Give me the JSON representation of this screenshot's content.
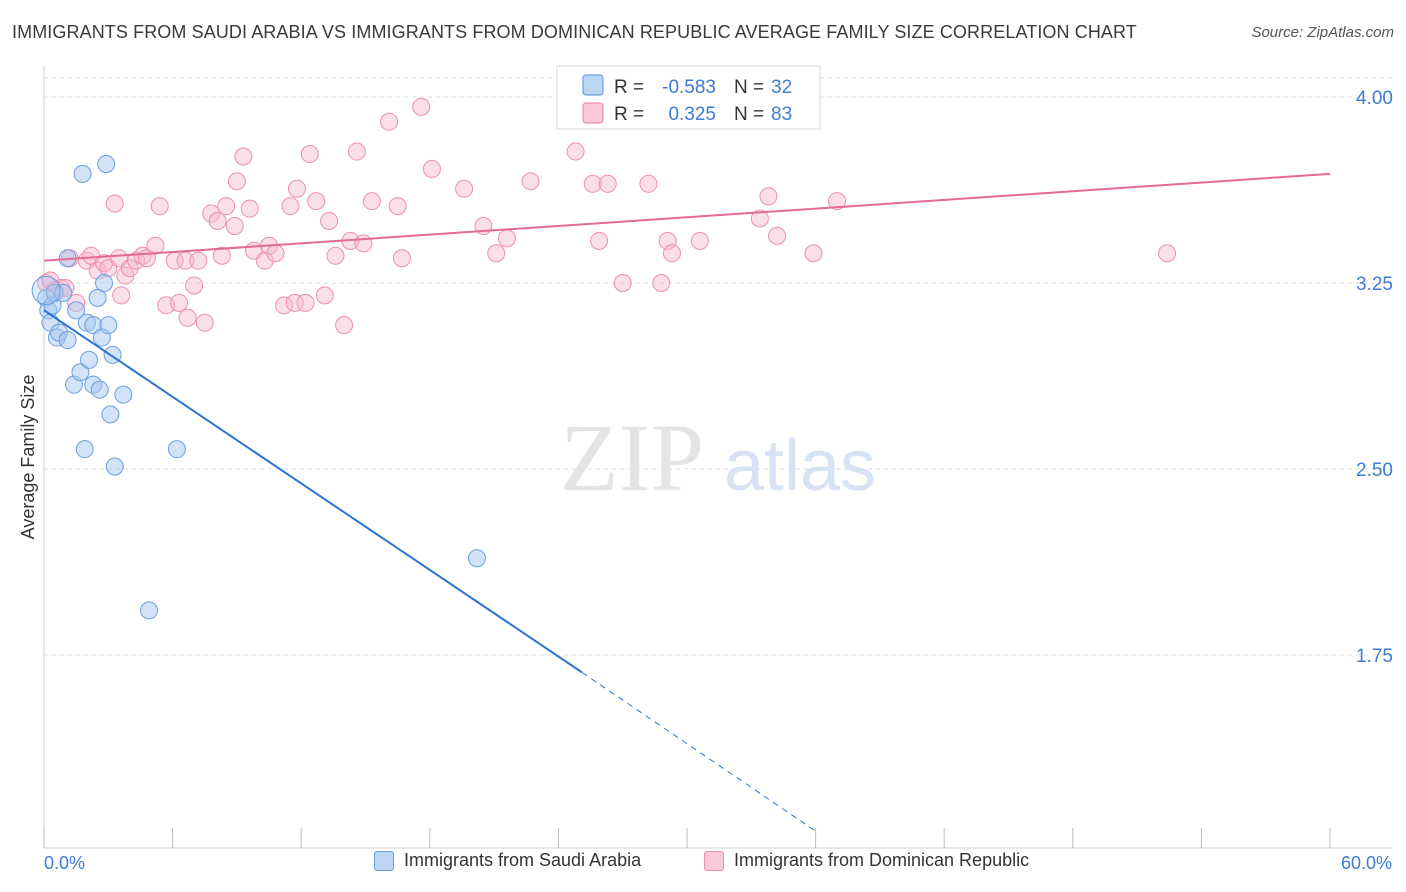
{
  "header": {
    "title": "IMMIGRANTS FROM SAUDI ARABIA VS IMMIGRANTS FROM DOMINICAN REPUBLIC AVERAGE FAMILY SIZE CORRELATION CHART",
    "source": "Source: ZipAtlas.com"
  },
  "watermark": {
    "zip": "ZIP",
    "atlas": "atlas"
  },
  "colors": {
    "blue_fill": "#a8c8f0",
    "blue_stroke": "#6a9fe0",
    "blue_line": "#2c74d4",
    "pink_fill": "#f7b8cc",
    "pink_stroke": "#ee8fae",
    "pink_line": "#e36a96",
    "tick_label": "#3d7bd4",
    "grid": "#dddddd"
  },
  "chart_data": {
    "type": "scatter",
    "title": "IMMIGRANTS FROM SAUDI ARABIA VS IMMIGRANTS FROM DOMINICAN REPUBLIC AVERAGE FAMILY SIZE CORRELATION CHART",
    "xlabel": "",
    "ylabel": "Average Family Size",
    "xlim": [
      0,
      60
    ],
    "ylim": [
      1.0,
      4.1
    ],
    "x_tick_labels": [
      "0.0%",
      "60.0%"
    ],
    "y_ticks": [
      4.0,
      3.25,
      2.5,
      1.75
    ],
    "y_tick_labels": [
      "4.00",
      "3.25",
      "2.50",
      "1.75"
    ],
    "grid": true,
    "legend_stats": [
      {
        "r_label": "R =",
        "r_value": "-0.583",
        "n_label": "N =",
        "n_value": "32"
      },
      {
        "r_label": "R =",
        "r_value": "0.325",
        "n_label": "N =",
        "n_value": "83"
      }
    ],
    "series": [
      {
        "name": "Immigrants from Saudi Arabia",
        "color": "blue",
        "trend": {
          "x_start": 0,
          "y_start": 3.14,
          "x_solid_end": 25.1,
          "y_solid_end": 1.68,
          "x_end": 36.0,
          "y_end": 1.04
        },
        "points": [
          [
            0.1,
            3.19
          ],
          [
            0.2,
            3.14
          ],
          [
            0.3,
            3.09
          ],
          [
            0.4,
            3.16
          ],
          [
            0.5,
            3.21
          ],
          [
            0.6,
            3.03
          ],
          [
            0.7,
            3.05
          ],
          [
            0.9,
            3.21
          ],
          [
            1.1,
            3.35
          ],
          [
            1.1,
            3.02
          ],
          [
            1.4,
            2.84
          ],
          [
            1.5,
            3.14
          ],
          [
            1.7,
            2.89
          ],
          [
            1.8,
            3.69
          ],
          [
            2.0,
            3.09
          ],
          [
            1.9,
            2.58
          ],
          [
            2.1,
            2.94
          ],
          [
            2.3,
            3.08
          ],
          [
            2.3,
            2.84
          ],
          [
            2.5,
            3.19
          ],
          [
            2.7,
            3.03
          ],
          [
            2.8,
            3.25
          ],
          [
            2.9,
            3.73
          ],
          [
            3.0,
            3.08
          ],
          [
            3.1,
            2.72
          ],
          [
            3.3,
            2.51
          ],
          [
            3.7,
            2.8
          ],
          [
            3.2,
            2.96
          ],
          [
            4.9,
            1.93
          ],
          [
            6.2,
            2.58
          ],
          [
            20.2,
            2.14
          ],
          [
            2.6,
            2.82
          ]
        ]
      },
      {
        "name": "Immigrants from Dominican Republic",
        "color": "pink",
        "trend": {
          "x_start": 0,
          "y_start": 3.34,
          "x_end": 60,
          "y_end": 3.69
        },
        "points": [
          [
            0.1,
            3.25
          ],
          [
            0.3,
            3.26
          ],
          [
            0.5,
            3.22
          ],
          [
            0.8,
            3.23
          ],
          [
            1.0,
            3.23
          ],
          [
            1.2,
            3.35
          ],
          [
            1.5,
            3.17
          ],
          [
            2.0,
            3.34
          ],
          [
            2.2,
            3.36
          ],
          [
            2.5,
            3.3
          ],
          [
            2.8,
            3.33
          ],
          [
            3.0,
            3.31
          ],
          [
            3.3,
            3.57
          ],
          [
            3.5,
            3.35
          ],
          [
            3.6,
            3.2
          ],
          [
            3.8,
            3.28
          ],
          [
            4.0,
            3.31
          ],
          [
            4.3,
            3.34
          ],
          [
            4.6,
            3.36
          ],
          [
            4.8,
            3.35
          ],
          [
            5.2,
            3.4
          ],
          [
            5.4,
            3.56
          ],
          [
            5.7,
            3.16
          ],
          [
            6.1,
            3.34
          ],
          [
            6.3,
            3.17
          ],
          [
            6.6,
            3.34
          ],
          [
            6.7,
            3.11
          ],
          [
            7.0,
            3.24
          ],
          [
            7.2,
            3.34
          ],
          [
            7.5,
            3.09
          ],
          [
            7.8,
            3.53
          ],
          [
            8.1,
            3.5
          ],
          [
            8.3,
            3.36
          ],
          [
            8.5,
            3.56
          ],
          [
            8.9,
            3.48
          ],
          [
            9.0,
            3.66
          ],
          [
            9.3,
            3.76
          ],
          [
            9.6,
            3.55
          ],
          [
            9.8,
            3.38
          ],
          [
            10.3,
            3.34
          ],
          [
            10.5,
            3.4
          ],
          [
            10.8,
            3.37
          ],
          [
            11.2,
            3.16
          ],
          [
            11.5,
            3.56
          ],
          [
            11.7,
            3.17
          ],
          [
            11.8,
            3.63
          ],
          [
            12.2,
            3.17
          ],
          [
            12.4,
            3.77
          ],
          [
            12.7,
            3.58
          ],
          [
            13.1,
            3.2
          ],
          [
            13.3,
            3.5
          ],
          [
            13.6,
            3.36
          ],
          [
            14.0,
            3.08
          ],
          [
            14.3,
            3.42
          ],
          [
            14.6,
            3.78
          ],
          [
            14.9,
            3.41
          ],
          [
            15.3,
            3.58
          ],
          [
            16.1,
            3.9
          ],
          [
            16.5,
            3.56
          ],
          [
            16.7,
            3.35
          ],
          [
            17.6,
            3.96
          ],
          [
            18.1,
            3.71
          ],
          [
            19.6,
            3.63
          ],
          [
            20.5,
            3.48
          ],
          [
            21.1,
            3.37
          ],
          [
            21.6,
            3.43
          ],
          [
            22.7,
            3.66
          ],
          [
            24.8,
            3.78
          ],
          [
            25.6,
            3.65
          ],
          [
            25.9,
            3.42
          ],
          [
            26.3,
            3.65
          ],
          [
            27.0,
            3.25
          ],
          [
            28.2,
            3.65
          ],
          [
            28.8,
            3.25
          ],
          [
            29.1,
            3.42
          ],
          [
            29.3,
            3.37
          ],
          [
            30.6,
            3.42
          ],
          [
            33.4,
            3.51
          ],
          [
            33.8,
            3.6
          ],
          [
            34.2,
            3.44
          ],
          [
            35.9,
            3.37
          ],
          [
            37.0,
            3.58
          ],
          [
            52.4,
            3.37
          ]
        ]
      }
    ]
  }
}
